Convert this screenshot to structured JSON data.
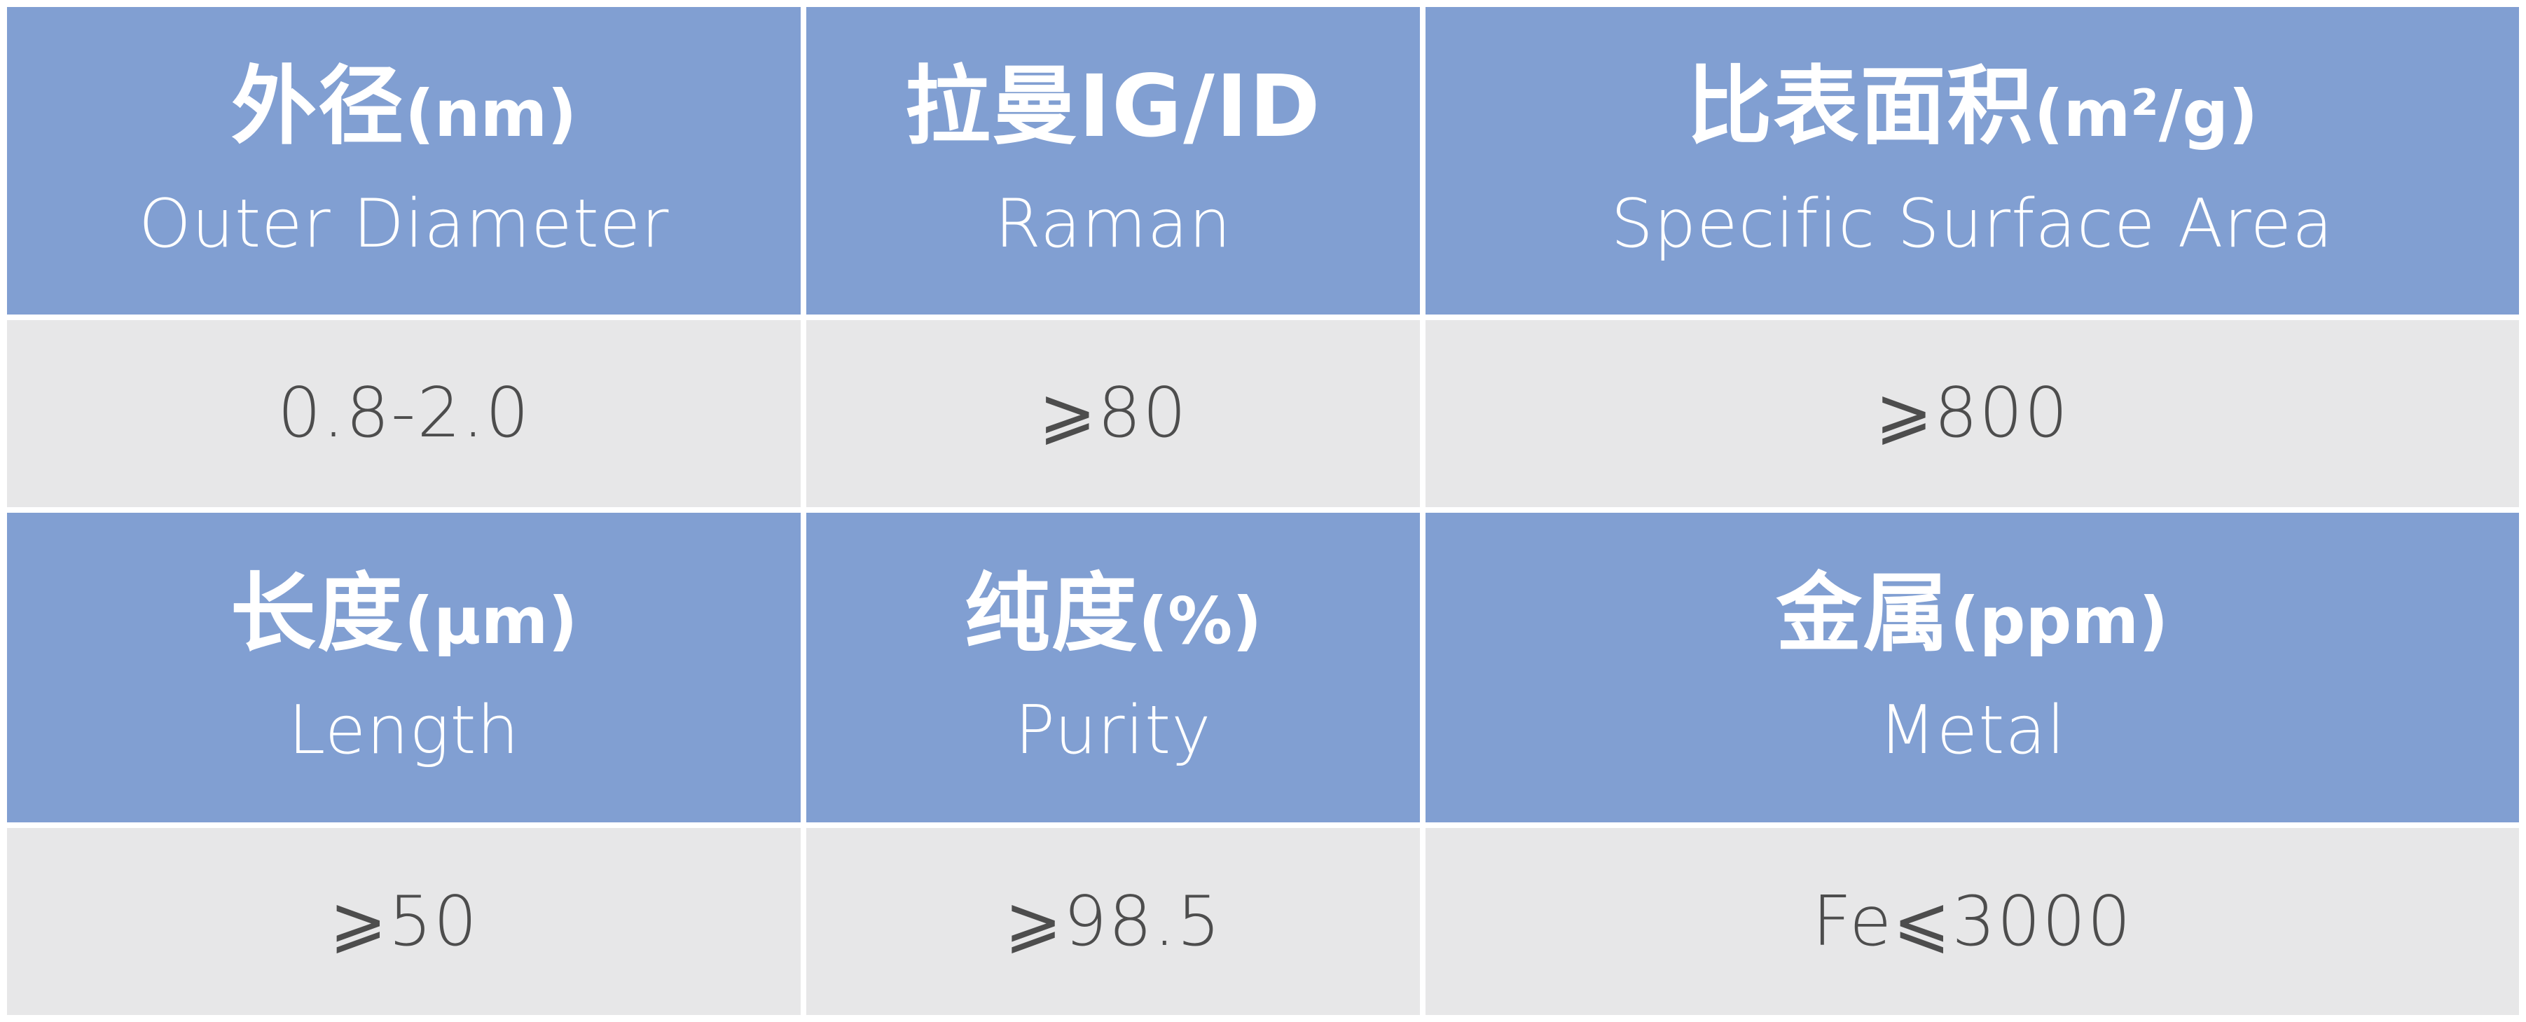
{
  "colors": {
    "header_bg": "#819fd2",
    "value_bg": "#e7e7e8",
    "header_text": "#ffffff",
    "value_text": "#4d4d4d",
    "border": "#ffffff"
  },
  "specs": [
    {
      "id": "outer-diameter",
      "zh": "外径",
      "unit": "(nm)",
      "en": "Outer Diameter",
      "value": "0.8-2.0"
    },
    {
      "id": "raman",
      "zh": "拉曼IG/ID",
      "unit": "",
      "en": "Raman",
      "value": "⩾80"
    },
    {
      "id": "specific-surface-area",
      "zh": "比表面积",
      "unit": "(m²/g)",
      "en": "Specific Surface Area",
      "value": "⩾800"
    },
    {
      "id": "length",
      "zh": "长度",
      "unit": "(μm)",
      "en": "Length",
      "value": "⩾50"
    },
    {
      "id": "purity",
      "zh": "纯度",
      "unit": "(%)",
      "en": "Purity",
      "value": "⩾98.5"
    },
    {
      "id": "metal",
      "zh": "金属",
      "unit": "(ppm)",
      "en": "Metal",
      "value": "Fe⩽3000"
    }
  ],
  "chart_data": {
    "type": "table",
    "title": "",
    "rows": [
      {
        "headers_zh": [
          "外径(nm)",
          "拉曼IG/ID",
          "比表面积(m²/g)"
        ],
        "headers_en": [
          "Outer Diameter",
          "Raman",
          "Specific Surface Area"
        ],
        "values": [
          "0.8-2.0",
          "⩾80",
          "⩾800"
        ]
      },
      {
        "headers_zh": [
          "长度(μm)",
          "纯度(%)",
          "金属(ppm)"
        ],
        "headers_en": [
          "Length",
          "Purity",
          "Metal"
        ],
        "values": [
          "⩾50",
          "⩾98.5",
          "Fe⩽3000"
        ]
      }
    ],
    "layout": {
      "columns": 3,
      "grid": "white gutters",
      "header_style": "blue",
      "value_style": "gray"
    }
  }
}
